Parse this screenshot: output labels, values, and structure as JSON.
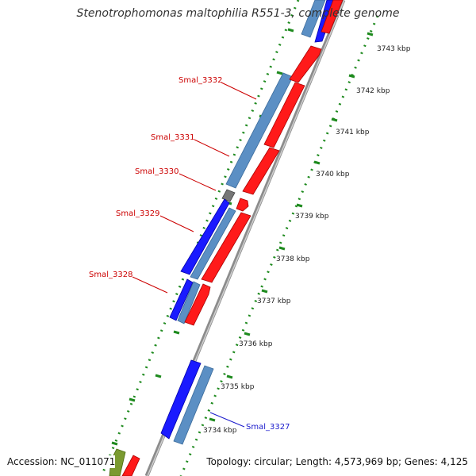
{
  "title": "Stenotrophomonas maltophilia R551-3, complete genome",
  "footer": {
    "accession": "Accession: NC_011071",
    "summary": "Topology: circular; Length: 4,573,969 bp; Genes: 4,125"
  },
  "colors": {
    "backbone": "#8a8a8a",
    "tick": "#1e8a1e",
    "forward_cds": "#ff1a1a",
    "reverse_cds": "#1a1aff",
    "other_cds": "#5b8fc4",
    "gray_feature": "#777777",
    "green_feature": "#7a9a30",
    "label_red": "#cc0000",
    "label_blue": "#1a1acc"
  },
  "scale_labels": [
    {
      "text": "3743 kbp",
      "kbp": 3743
    },
    {
      "text": "3742 kbp",
      "kbp": 3742
    },
    {
      "text": "3741 kbp",
      "kbp": 3741
    },
    {
      "text": "3740 kbp",
      "kbp": 3740
    },
    {
      "text": "3739 kbp",
      "kbp": 3739
    },
    {
      "text": "3738 kbp",
      "kbp": 3738
    },
    {
      "text": "3737 kbp",
      "kbp": 3737
    },
    {
      "text": "3736 kbp",
      "kbp": 3736
    },
    {
      "text": "3735 kbp",
      "kbp": 3735
    },
    {
      "text": "3734 kbp",
      "kbp": 3734
    }
  ],
  "gene_labels": [
    {
      "text": "Smal_3332",
      "color": "#cc0000"
    },
    {
      "text": "Smal_3331",
      "color": "#cc0000"
    },
    {
      "text": "Smal_3330",
      "color": "#cc0000"
    },
    {
      "text": "Smal_3329",
      "color": "#cc0000"
    },
    {
      "text": "Smal_3328",
      "color": "#cc0000"
    },
    {
      "text": "Smal_3327",
      "color": "#1a1acc"
    }
  ]
}
